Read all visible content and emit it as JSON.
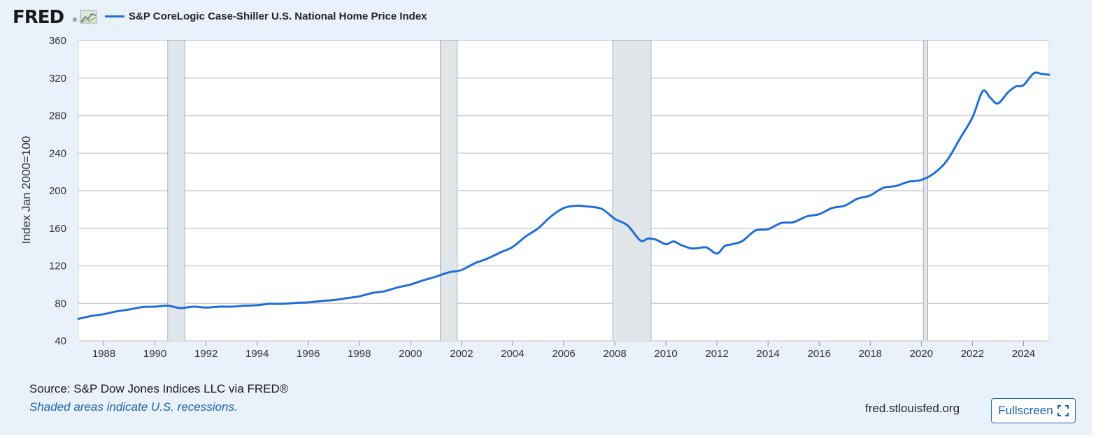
{
  "header": {
    "logo_text": "FRED",
    "logo_mark": "®",
    "logo_icon": "line-chart-icon",
    "legend_label": "S&P CoreLogic Case-Shiller U.S. National Home Price Index"
  },
  "footer": {
    "source": "Source: S&P Dow Jones Indices LLC via FRED®",
    "recession_note": "Shaded areas indicate U.S. recessions.",
    "site_link": "fred.stlouisfed.org",
    "fullscreen_label": "Fullscreen",
    "fullscreen_icon": "expand-icon"
  },
  "colors": {
    "series": "#1f6ed8",
    "recession": "#e1e6ea",
    "background": "#e9f1fa",
    "link": "#1a63b5"
  },
  "chart_data": {
    "type": "line",
    "title": "",
    "xlabel": "",
    "ylabel": "Index Jan 2000=100",
    "xlim": [
      1987.0,
      2025.0
    ],
    "ylim": [
      40,
      360
    ],
    "x_ticks": [
      1988,
      1990,
      1992,
      1994,
      1996,
      1998,
      2000,
      2002,
      2004,
      2006,
      2008,
      2010,
      2012,
      2014,
      2016,
      2018,
      2020,
      2022,
      2024
    ],
    "y_ticks": [
      40,
      80,
      120,
      160,
      200,
      240,
      280,
      320,
      360
    ],
    "grid": true,
    "legend_placement": "top-left",
    "recessions": [
      [
        1990.5,
        1991.17
      ],
      [
        2001.17,
        2001.83
      ],
      [
        2007.92,
        2009.42
      ],
      [
        2020.08,
        2020.25
      ]
    ],
    "series": [
      {
        "name": "S&P CoreLogic Case-Shiller U.S. National Home Price Index",
        "x": [
          1987.0,
          1987.5,
          1988.0,
          1988.5,
          1989.0,
          1989.5,
          1990.0,
          1990.5,
          1991.0,
          1991.5,
          1992.0,
          1992.5,
          1993.0,
          1993.5,
          1994.0,
          1994.5,
          1995.0,
          1995.5,
          1996.0,
          1996.5,
          1997.0,
          1997.5,
          1998.0,
          1998.5,
          1999.0,
          1999.5,
          2000.0,
          2000.5,
          2001.0,
          2001.5,
          2002.0,
          2002.5,
          2003.0,
          2003.5,
          2004.0,
          2004.5,
          2005.0,
          2005.5,
          2006.0,
          2006.5,
          2007.0,
          2007.5,
          2008.0,
          2008.5,
          2009.0,
          2009.3,
          2009.6,
          2010.0,
          2010.3,
          2010.6,
          2011.0,
          2011.3,
          2011.6,
          2012.0,
          2012.3,
          2012.6,
          2013.0,
          2013.5,
          2014.0,
          2014.5,
          2015.0,
          2015.5,
          2016.0,
          2016.5,
          2017.0,
          2017.5,
          2018.0,
          2018.5,
          2019.0,
          2019.5,
          2020.0,
          2020.5,
          2021.0,
          2021.5,
          2022.0,
          2022.4,
          2022.7,
          2023.0,
          2023.4,
          2023.7,
          2024.0,
          2024.4,
          2024.7,
          2025.0
        ],
        "y": [
          63.5,
          66.5,
          68.5,
          71.5,
          73.5,
          76.0,
          76.5,
          77.5,
          75.0,
          76.5,
          75.5,
          76.5,
          76.5,
          77.5,
          78.0,
          79.5,
          79.5,
          80.5,
          81.0,
          82.5,
          83.5,
          85.5,
          87.5,
          91.0,
          93.0,
          97.0,
          100.0,
          104.5,
          108.5,
          113.0,
          115.5,
          122.5,
          127.5,
          134.0,
          140.0,
          151.0,
          160.0,
          172.5,
          181.5,
          184.0,
          183.0,
          180.5,
          170.0,
          163.0,
          147.0,
          149.0,
          148.0,
          143.0,
          146.0,
          142.0,
          138.5,
          139.0,
          139.5,
          133.0,
          141.0,
          143.0,
          146.5,
          157.5,
          159.0,
          165.5,
          166.5,
          172.5,
          175.0,
          181.5,
          184.0,
          191.5,
          195.0,
          203.0,
          205.0,
          209.5,
          211.5,
          218.5,
          232.0,
          255.0,
          278.0,
          306.0,
          299.0,
          293.0,
          305.0,
          311.0,
          312.5,
          325.0,
          324.5,
          323.5
        ]
      }
    ]
  }
}
